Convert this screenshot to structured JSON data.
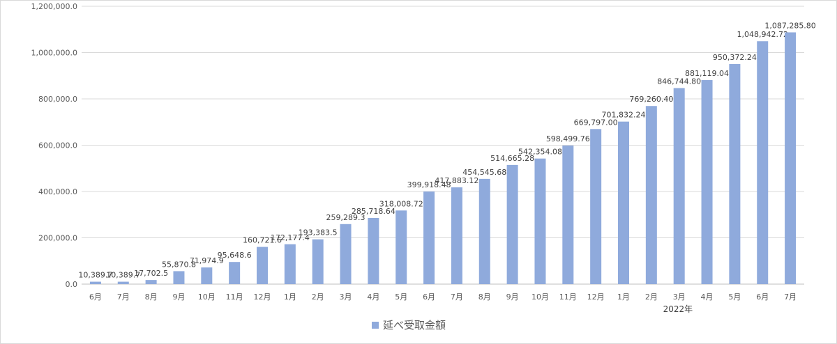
{
  "chart_data": {
    "type": "bar",
    "ylim": [
      0,
      1200000
    ],
    "ytick_labels": [
      "0.0",
      "200,000.0",
      "400,000.0",
      "600,000.0",
      "800,000.0",
      "1,000,000.0",
      "1,200,000.0"
    ],
    "ytick_values": [
      0,
      200000,
      400000,
      600000,
      800000,
      1000000,
      1200000
    ],
    "grid": true,
    "legend_position": "bottom",
    "year_label": "2022年",
    "year_label_under_index": 20,
    "bar_color": "#8faadc",
    "categories": [
      "6月",
      "7月",
      "8月",
      "9月",
      "10月",
      "11月",
      "12月",
      "1月",
      "2月",
      "3月",
      "4月",
      "5月",
      "6月",
      "7月",
      "8月",
      "9月",
      "10月",
      "11月",
      "12月",
      "1月",
      "2月",
      "3月",
      "4月",
      "5月",
      "6月",
      "7月"
    ],
    "series": [
      {
        "name": "延べ受取金額",
        "values": [
          10389.7,
          10389.7,
          17702.5,
          55870.8,
          71974.9,
          95648.6,
          160721.6,
          172177.4,
          193383.5,
          259289.3,
          285718.64,
          318008.72,
          399918.48,
          417883.12,
          454545.68,
          514665.28,
          542354.08,
          598499.76,
          669797.0,
          701832.24,
          769260.4,
          846744.8,
          881119.04,
          950372.24,
          1048942.72,
          1087285.8
        ],
        "data_labels": [
          "10,389.7",
          "10,389.7",
          "17,702.5",
          "55,870.8",
          "71,974.9",
          "95,648.6",
          "160,721.6",
          "172,177.4",
          "193,383.5",
          "259,289.3",
          "285,718.64",
          "318,008.72",
          "399,918.48",
          "417,883.12",
          "454,545.68",
          "514,665.28",
          "542,354.08",
          "598,499.76",
          "669,797.00",
          "701,832.24",
          "769,260.40",
          "846,744.80",
          "881,119.04",
          "950,372.24",
          "1,048,942.72",
          "1,087,285.80"
        ]
      }
    ]
  },
  "legend": {
    "label": "延べ受取金額"
  }
}
